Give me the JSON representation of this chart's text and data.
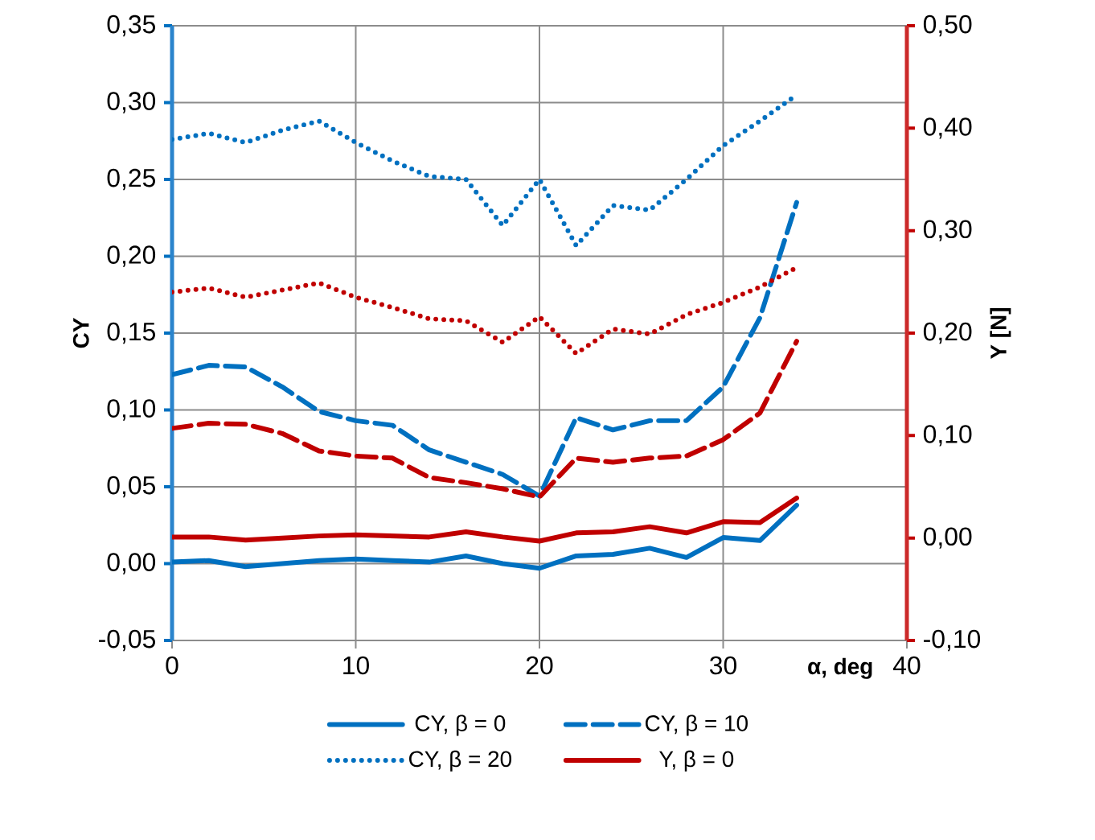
{
  "chart_data": {
    "type": "line",
    "xlabel": "α, deg",
    "ylabel": "CY",
    "y2label": "Y [N]",
    "x": [
      0,
      2,
      4,
      6,
      8,
      10,
      12,
      14,
      16,
      18,
      20,
      22,
      24,
      26,
      28,
      30,
      32,
      34
    ],
    "xlim": [
      0,
      40
    ],
    "xticks": [
      0,
      10,
      20,
      30,
      40
    ],
    "ylim": [
      -0.05,
      0.35
    ],
    "yticks": [
      {
        "value": -0.05,
        "label": "-0,05"
      },
      {
        "value": 0,
        "label": "0,00"
      },
      {
        "value": 0.05,
        "label": "0,05"
      },
      {
        "value": 0.1,
        "label": "0,10"
      },
      {
        "value": 0.15,
        "label": "0,15"
      },
      {
        "value": 0.2,
        "label": "0,20"
      },
      {
        "value": 0.25,
        "label": "0,25"
      },
      {
        "value": 0.3,
        "label": "0,30"
      },
      {
        "value": 0.35,
        "label": "0,35"
      }
    ],
    "y2lim": [
      -0.1,
      0.5
    ],
    "y2ticks": [
      {
        "value": -0.1,
        "label": "-0,10"
      },
      {
        "value": 0,
        "label": "0,00"
      },
      {
        "value": 0.1,
        "label": "0,10"
      },
      {
        "value": 0.2,
        "label": "0,20"
      },
      {
        "value": 0.3,
        "label": "0,30"
      },
      {
        "value": 0.4,
        "label": "0,40"
      },
      {
        "value": 0.5,
        "label": "0,50"
      }
    ],
    "grid": true,
    "legend": "bottom",
    "marker": "none",
    "series": [
      {
        "name": "CY, β = 0",
        "color": "#0070c0",
        "line_style": "solid",
        "values": [
          0.001,
          0.002,
          -0.002,
          0.0,
          0.002,
          0.003,
          0.002,
          0.001,
          0.005,
          0.0,
          -0.003,
          0.005,
          0.006,
          0.01,
          0.004,
          0.017,
          0.015,
          0.038
        ]
      },
      {
        "name": "CY, β = 10",
        "color": "#0070c0",
        "line_style": "dashed",
        "values": [
          0.123,
          0.129,
          0.128,
          0.115,
          0.099,
          0.093,
          0.09,
          0.074,
          0.066,
          0.058,
          0.044,
          0.095,
          0.087,
          0.093,
          0.093,
          0.115,
          0.16,
          0.235
        ]
      },
      {
        "name": "CY, β = 20",
        "color": "#0070c0",
        "line_style": "dotted",
        "values": [
          0.276,
          0.28,
          0.274,
          0.282,
          0.288,
          0.274,
          0.262,
          0.252,
          0.25,
          0.22,
          0.25,
          0.207,
          0.233,
          0.23,
          0.25,
          0.272,
          0.288,
          0.305
        ]
      },
      {
        "name": "Y, β = 0",
        "color": "#c00000",
        "line_style": "solid",
        "axis": "y2",
        "values": [
          0.001,
          0.001,
          -0.002,
          0.0,
          0.002,
          0.003,
          0.002,
          0.001,
          0.006,
          0.001,
          -0.003,
          0.005,
          0.006,
          0.011,
          0.005,
          0.016,
          0.015,
          0.039
        ]
      },
      {
        "color": "#c00000",
        "line_style": "dashed",
        "axis": "y2",
        "values": [
          0.107,
          0.112,
          0.111,
          0.102,
          0.085,
          0.08,
          0.078,
          0.059,
          0.054,
          0.048,
          0.04,
          0.078,
          0.074,
          0.078,
          0.08,
          0.096,
          0.122,
          0.192
        ]
      },
      {
        "color": "#c00000",
        "line_style": "dotted",
        "axis": "y2",
        "values": [
          0.24,
          0.244,
          0.235,
          0.242,
          0.249,
          0.235,
          0.225,
          0.214,
          0.212,
          0.191,
          0.216,
          0.18,
          0.204,
          0.199,
          0.218,
          0.23,
          0.245,
          0.264
        ]
      }
    ]
  }
}
